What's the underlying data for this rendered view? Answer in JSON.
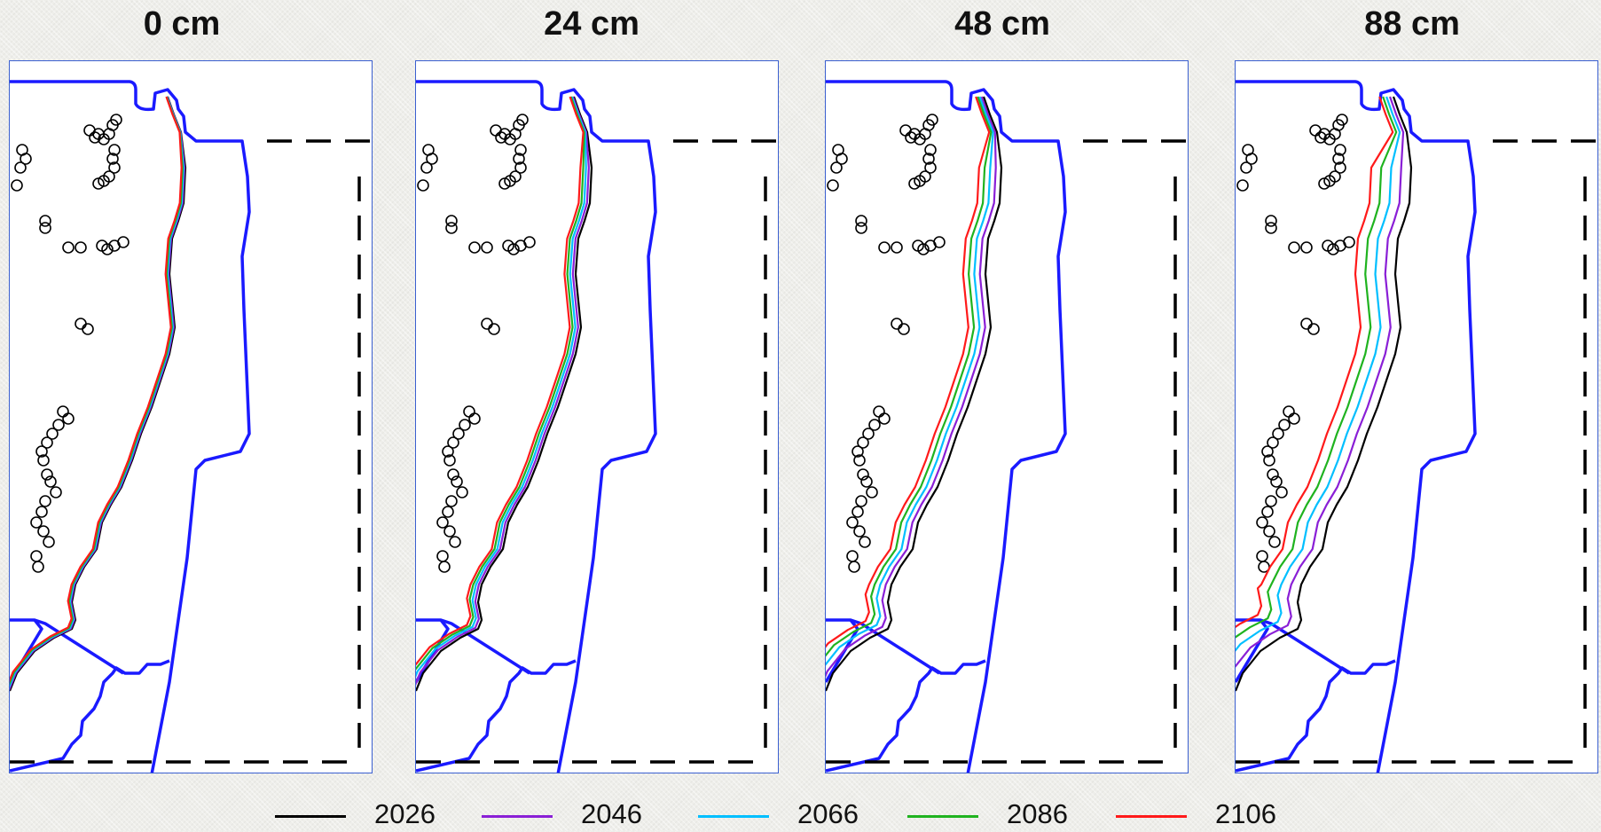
{
  "scenarios": [
    {
      "title": "0 cm",
      "spread": 0.12
    },
    {
      "title": "24 cm",
      "spread": 0.35
    },
    {
      "title": "48 cm",
      "spread": 0.7
    },
    {
      "title": "88 cm",
      "spread": 1.25
    }
  ],
  "legend": [
    {
      "label": "2026",
      "color": "#000000"
    },
    {
      "label": "2046",
      "color": "#8a1fd6"
    },
    {
      "label": "2066",
      "color": "#00bfff"
    },
    {
      "label": "2086",
      "color": "#1fb31f"
    },
    {
      "label": "2106",
      "color": "#ff1a1a"
    }
  ],
  "colors": {
    "boundary": "#1a1aff",
    "dashed": "#000000",
    "points": "#000000",
    "frame": "#3a5fd0"
  }
}
